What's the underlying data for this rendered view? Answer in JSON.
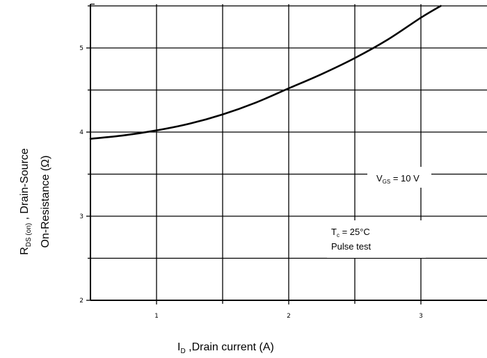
{
  "chart_data": {
    "type": "line",
    "title": "",
    "xlabel": {
      "main": "I",
      "sub": "D",
      "rest": " ,Drain current (A)"
    },
    "ylabel": {
      "line1_main": "R",
      "line1_sub": "DS (on)",
      "line1_rest": " , Drain-Source",
      "line2": "On-Resistance    (Ω)"
    },
    "xlim": [
      0.48,
      3.48
    ],
    "ylim": [
      1.95,
      5.5
    ],
    "x_ticks": [
      1,
      2,
      3
    ],
    "y_ticks": [
      2,
      3,
      4,
      5
    ],
    "x_tick_labels": [
      "1",
      "2",
      "3"
    ],
    "y_tick_labels": [
      "2",
      "3",
      "4",
      "5"
    ],
    "grid": true,
    "series": [
      {
        "x": [
          0.5,
          0.75,
          1.0,
          1.25,
          1.5,
          1.75,
          2.0,
          2.25,
          2.5,
          2.75,
          3.0,
          3.15
        ],
        "y": [
          3.92,
          3.96,
          4.02,
          4.1,
          4.21,
          4.35,
          4.52,
          4.69,
          4.88,
          5.1,
          5.36,
          5.5
        ]
      }
    ],
    "annotations": {
      "vgs": {
        "main": "V",
        "sub": "GS",
        "rest": " = 10 V"
      },
      "tc": {
        "main": "T",
        "sub": "c",
        "rest": " = 25°C"
      },
      "pulse": "Pulse test"
    }
  }
}
